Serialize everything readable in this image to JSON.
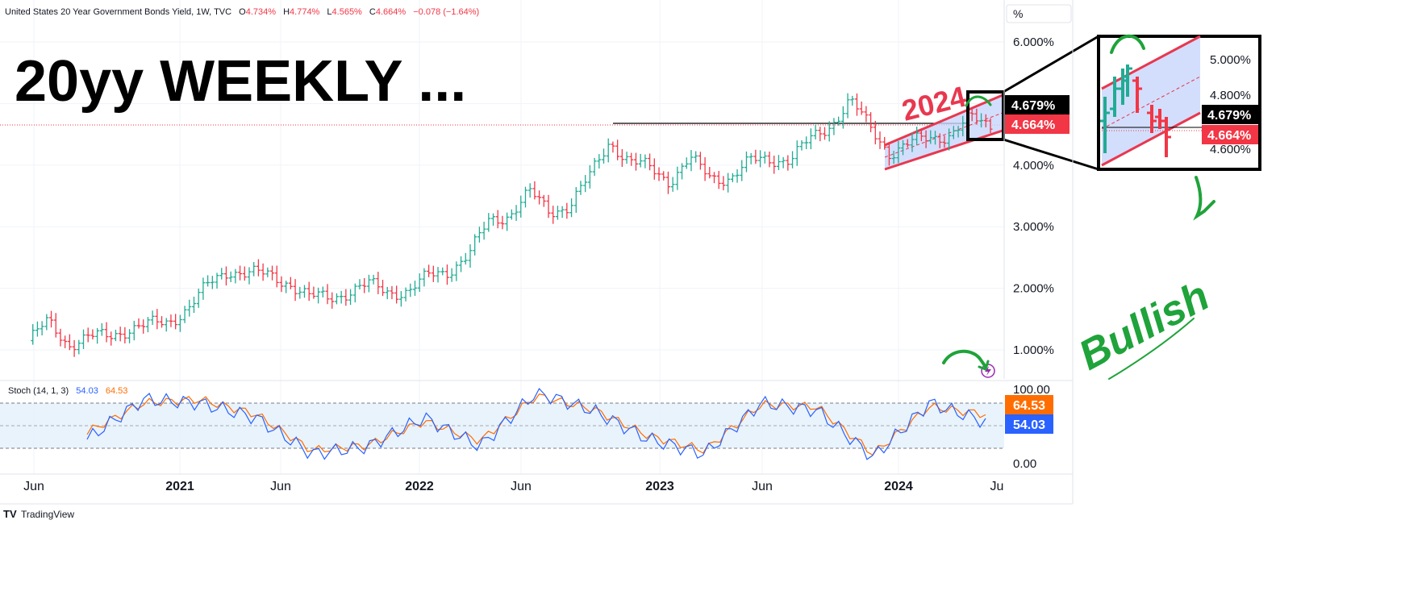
{
  "header": {
    "symbol": "United States 20 Year Government Bonds Yield, 1W, TVC",
    "o_label": "O",
    "o": "4.734%",
    "h_label": "H",
    "h": "4.774%",
    "l_label": "L",
    "l": "4.565%",
    "c_label": "C",
    "c": "4.664%",
    "change": "−0.078 (−1.64%)"
  },
  "annotations": {
    "title": "20yy WEEKLY ...",
    "year_label": "2024",
    "bullish": "Bullish"
  },
  "unit_button": "%",
  "price_axis": [
    "6.000%",
    "5.000%",
    "4.000%",
    "3.000%",
    "2.000%",
    "1.000%"
  ],
  "price_badges": {
    "high": "4.679%",
    "last": "4.664%"
  },
  "inset": {
    "axis_labels": [
      "5.000%",
      "4.800%",
      "4.600%"
    ],
    "badges": {
      "high": "4.679%",
      "last": "4.664%"
    }
  },
  "stoch": {
    "label": "Stoch (14, 1, 3)",
    "k_value": "54.03",
    "d_value": "64.53",
    "axis_labels": [
      "100.00",
      "0.00"
    ],
    "badge_d": "64.53",
    "badge_k": "54.03"
  },
  "time_axis": [
    "Jun",
    "2021",
    "Jun",
    "2022",
    "Jun",
    "2023",
    "Jun",
    "2024",
    "Ju"
  ],
  "branding": "TradingView",
  "colors": {
    "up": "#22ab94",
    "down": "#f23645",
    "stoch_k": "#2962ff",
    "stoch_d": "#ff6d00",
    "channel_line": "#e8384f",
    "channel_fill": "#c7d6fb",
    "annotation_green": "#1fa33a",
    "badge_dark": "#000000"
  },
  "chart_data": {
    "type": "ohlc-bars",
    "title": "United States 20 Year Government Bonds Yield, 1W, TVC",
    "ylim": [
      0.5,
      6.5
    ],
    "series": [
      {
        "name": "United States 20 Year Government Bonds Yield",
        "x": [
          "2020-05-29",
          "2020-06-26",
          "2020-07-31",
          "2020-08-28",
          "2020-09-25",
          "2020-10-30",
          "2020-11-27",
          "2020-12-25",
          "2021-01-29",
          "2021-02-26",
          "2021-03-26",
          "2021-04-30",
          "2021-05-28",
          "2021-06-25",
          "2021-07-30",
          "2021-08-27",
          "2021-09-24",
          "2021-10-29",
          "2021-11-26",
          "2021-12-31",
          "2022-01-28",
          "2022-02-25",
          "2022-03-25",
          "2022-04-29",
          "2022-05-27",
          "2022-06-24",
          "2022-07-29",
          "2022-08-26",
          "2022-09-30",
          "2022-10-28",
          "2022-11-25",
          "2022-12-30",
          "2023-01-27",
          "2023-02-24",
          "2023-03-31",
          "2023-04-28",
          "2023-05-26",
          "2023-06-30",
          "2023-07-28",
          "2023-08-25",
          "2023-09-29",
          "2023-10-27",
          "2023-11-24",
          "2023-12-29",
          "2024-01-26",
          "2024-02-23",
          "2024-03-29",
          "2024-04-26",
          "2024-05-24"
        ],
        "y": [
          1.15,
          1.45,
          1.1,
          1.2,
          1.22,
          1.35,
          1.4,
          1.45,
          1.7,
          2.05,
          2.3,
          2.25,
          2.2,
          2.1,
          1.85,
          1.85,
          1.95,
          2.05,
          1.95,
          1.95,
          2.2,
          2.3,
          2.55,
          3.1,
          3.2,
          3.55,
          3.25,
          3.35,
          3.8,
          4.4,
          4.05,
          3.95,
          3.75,
          4.1,
          3.8,
          3.8,
          4.05,
          4.1,
          4.1,
          4.4,
          4.65,
          5.05,
          4.6,
          4.2,
          4.35,
          4.45,
          4.5,
          4.75,
          4.66
        ]
      }
    ],
    "stochastic": {
      "x": [
        "2020-07",
        "2020-10",
        "2021-01",
        "2021-04",
        "2021-07",
        "2021-10",
        "2022-01",
        "2022-04",
        "2022-07",
        "2022-10",
        "2023-01",
        "2023-04",
        "2023-07",
        "2023-10",
        "2024-01",
        "2024-04",
        "2024-05"
      ],
      "k": [
        30,
        85,
        80,
        60,
        10,
        20,
        60,
        20,
        95,
        70,
        30,
        10,
        80,
        70,
        5,
        80,
        54.03
      ],
      "d": [
        40,
        80,
        85,
        65,
        15,
        22,
        55,
        28,
        90,
        72,
        35,
        15,
        78,
        75,
        10,
        75,
        64.53
      ],
      "ylim": [
        0,
        100
      ],
      "bands": [
        20,
        50,
        80
      ]
    },
    "price_channel": {
      "label": "2024",
      "x": [
        "2023-12-29",
        "2024-05-24"
      ],
      "upper": [
        4.4,
        4.85
      ],
      "lower": [
        3.95,
        4.45
      ]
    },
    "horizontal_level": 4.664,
    "resistance_level": 4.679
  }
}
